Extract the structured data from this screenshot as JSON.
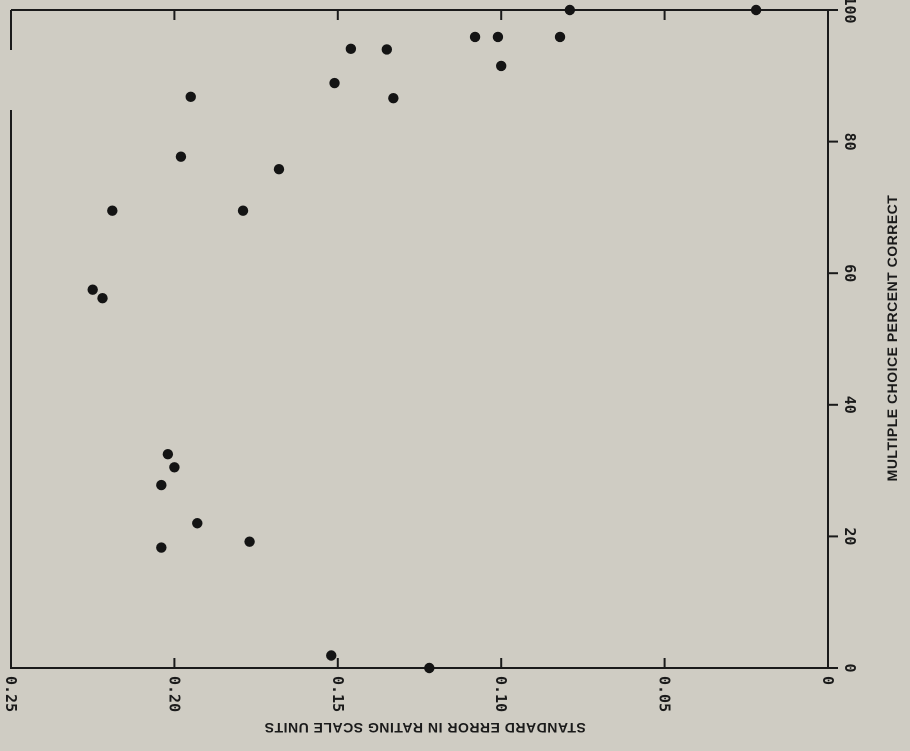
{
  "chart_data": {
    "type": "scatter",
    "orientation": "rotated 90 degrees clockwise (y axis runs along the right side, x axis along the bottom, x values decrease to the right)",
    "title": "",
    "xlabel": "STANDARD ERROR IN RATING SCALE UNITS",
    "ylabel": "MULTIPLE CHOICE PERCENT CORRECT",
    "xlim": [
      0.25,
      0
    ],
    "ylim": [
      0,
      100
    ],
    "x_ticks": [
      {
        "value": 0.25,
        "label": "0.25"
      },
      {
        "value": 0.2,
        "label": "0.20"
      },
      {
        "value": 0.15,
        "label": "0.15"
      },
      {
        "value": 0.1,
        "label": "0.10"
      },
      {
        "value": 0.05,
        "label": "0.05"
      },
      {
        "value": 0,
        "label": "0"
      }
    ],
    "y_ticks": [
      {
        "value": 0,
        "label": "0"
      },
      {
        "value": 20,
        "label": "20"
      },
      {
        "value": 40,
        "label": "40"
      },
      {
        "value": 60,
        "label": "60"
      },
      {
        "value": 80,
        "label": "80"
      },
      {
        "value": 100,
        "label": "100"
      }
    ],
    "grid": false,
    "legend": "none",
    "marker_color": "#141414",
    "series": [
      {
        "points": [
          {
            "x": 0.225,
            "y": 57.5
          },
          {
            "x": 0.222,
            "y": 56.2
          },
          {
            "x": 0.219,
            "y": 69.5
          },
          {
            "x": 0.204,
            "y": 27.8
          },
          {
            "x": 0.204,
            "y": 18.3
          },
          {
            "x": 0.202,
            "y": 32.5
          },
          {
            "x": 0.2,
            "y": 30.5
          },
          {
            "x": 0.198,
            "y": 77.7
          },
          {
            "x": 0.195,
            "y": 86.8
          },
          {
            "x": 0.193,
            "y": 22.0
          },
          {
            "x": 0.179,
            "y": 69.5
          },
          {
            "x": 0.177,
            "y": 19.2
          },
          {
            "x": 0.168,
            "y": 75.8
          },
          {
            "x": 0.152,
            "y": 1.9
          },
          {
            "x": 0.151,
            "y": 88.9
          },
          {
            "x": 0.146,
            "y": 94.1
          },
          {
            "x": 0.135,
            "y": 94.0
          },
          {
            "x": 0.133,
            "y": 86.6
          },
          {
            "x": 0.122,
            "y": 0.0
          },
          {
            "x": 0.108,
            "y": 95.9
          },
          {
            "x": 0.101,
            "y": 95.9
          },
          {
            "x": 0.1,
            "y": 91.5
          },
          {
            "x": 0.082,
            "y": 95.9
          },
          {
            "x": 0.079,
            "y": 100.0
          },
          {
            "x": 0.022,
            "y": 100.0
          }
        ]
      }
    ]
  }
}
